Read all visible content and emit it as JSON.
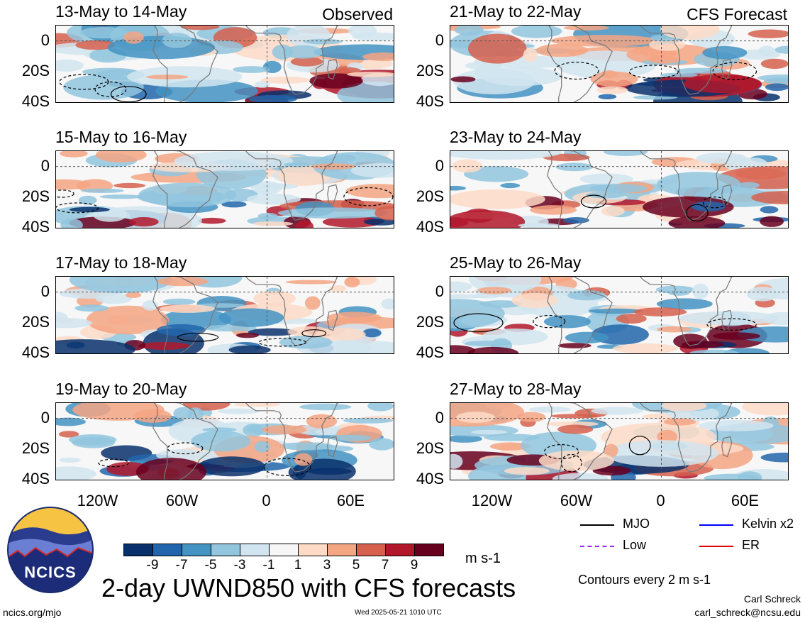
{
  "panels": [
    {
      "title": "13-May to 14-May",
      "corner": "Observed",
      "col": 0,
      "row": 0
    },
    {
      "title": "15-May to 16-May",
      "corner": "",
      "col": 0,
      "row": 1
    },
    {
      "title": "17-May to 18-May",
      "corner": "",
      "col": 0,
      "row": 2
    },
    {
      "title": "19-May to 20-May",
      "corner": "",
      "col": 0,
      "row": 3
    },
    {
      "title": "21-May to 22-May",
      "corner": "CFS Forecast",
      "col": 1,
      "row": 0
    },
    {
      "title": "23-May to 24-May",
      "corner": "",
      "col": 1,
      "row": 1
    },
    {
      "title": "25-May to 26-May",
      "corner": "",
      "col": 1,
      "row": 2
    },
    {
      "title": "27-May to 28-May",
      "corner": "",
      "col": 1,
      "row": 3
    }
  ],
  "y_ticks": [
    "0",
    "20S",
    "40S"
  ],
  "x_ticks": [
    "120W",
    "60W",
    "0",
    "60E"
  ],
  "colorbar": {
    "colors": [
      "#08306b",
      "#2166ac",
      "#4393c3",
      "#92c5de",
      "#d1e5f0",
      "#f7f7f7",
      "#fddbc7",
      "#f4a582",
      "#d6604d",
      "#b2182b",
      "#67001f"
    ],
    "labels": [
      "-9",
      "-7",
      "-5",
      "-3",
      "-1",
      "1",
      "3",
      "5",
      "7",
      "9"
    ],
    "unit": "m s-1"
  },
  "legend": [
    {
      "label": "MJO",
      "color": "#000000"
    },
    {
      "label": "Kelvin x2",
      "color": "#0000ff"
    },
    {
      "label": "Low",
      "color": "#a020f0"
    },
    {
      "label": "ER",
      "color": "#e00000"
    }
  ],
  "contour_note": "Contours every 2 m s-1",
  "main_title": "2-day UWND850 with CFS forecasts",
  "logo_text": "NCICS",
  "footer_left": "ncics.org/mjo",
  "footer_center": "Wed 2025-05-21 1010 UTC",
  "author": "Carl Schreck",
  "email": "carl_schreck@ncsu.edu"
}
